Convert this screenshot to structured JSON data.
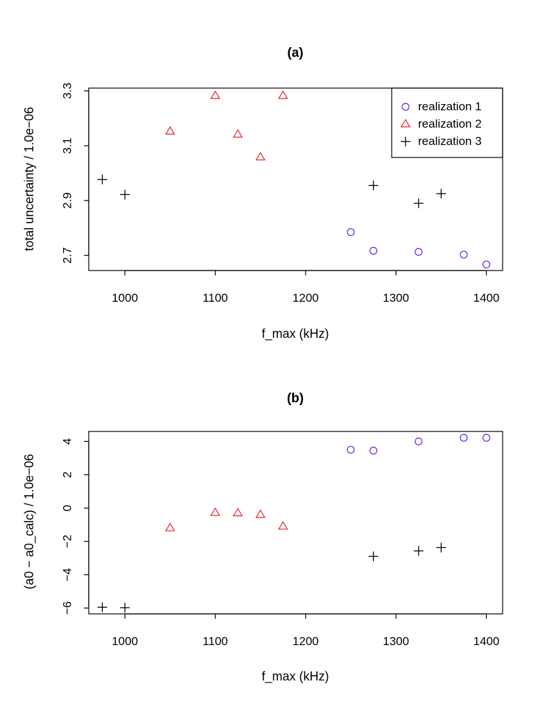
{
  "chart_data": [
    {
      "type": "scatter",
      "title": "(a)",
      "xlabel": "f_max (kHz)",
      "ylabel": "total uncertainty / 1.0e−06",
      "xlim": [
        960,
        1418
      ],
      "ylim": [
        2.645,
        3.31
      ],
      "xticks": [
        1000,
        1100,
        1200,
        1300,
        1400
      ],
      "xtick_labels": [
        "1000",
        "1100",
        "1200",
        "1300",
        "1400"
      ],
      "yticks": [
        2.7,
        2.9,
        3.1,
        3.3
      ],
      "ytick_labels": [
        "2.7",
        "2.9",
        "3.1",
        "3.3"
      ],
      "legend_position": "top-right",
      "series": [
        {
          "name": "realization 1",
          "marker": "circle",
          "color": "#6a1fe6",
          "points": [
            [
              1250,
              2.785
            ],
            [
              1275,
              2.717
            ],
            [
              1325,
              2.713
            ],
            [
              1375,
              2.703
            ],
            [
              1400,
              2.667
            ]
          ]
        },
        {
          "name": "realization 2",
          "marker": "triangle",
          "color": "#e6202a",
          "points": [
            [
              1050,
              3.152
            ],
            [
              1100,
              3.282
            ],
            [
              1125,
              3.141
            ],
            [
              1150,
              3.058
            ],
            [
              1175,
              3.282
            ]
          ]
        },
        {
          "name": "realization 3",
          "marker": "plus",
          "color": "#000000",
          "points": [
            [
              975,
              2.977
            ],
            [
              1000,
              2.922
            ],
            [
              1275,
              2.955
            ],
            [
              1325,
              2.89
            ],
            [
              1350,
              2.925
            ]
          ]
        }
      ]
    },
    {
      "type": "scatter",
      "title": "(b)",
      "xlabel": "f_max (kHz)",
      "ylabel": "(a0 − a0_calc) / 1.0e−06",
      "xlim": [
        960,
        1418
      ],
      "ylim": [
        -6.35,
        4.6
      ],
      "xticks": [
        1000,
        1100,
        1200,
        1300,
        1400
      ],
      "xtick_labels": [
        "1000",
        "1100",
        "1200",
        "1300",
        "1400"
      ],
      "yticks": [
        -6,
        -4,
        -2,
        0,
        2,
        4
      ],
      "ytick_labels": [
        "−6",
        "−4",
        "−2",
        "0",
        "2",
        "4"
      ],
      "series": [
        {
          "name": "realization 1",
          "marker": "circle",
          "color": "#6a1fe6",
          "points": [
            [
              1250,
              3.5
            ],
            [
              1275,
              3.45
            ],
            [
              1325,
              4.0
            ],
            [
              1375,
              4.22
            ],
            [
              1400,
              4.22
            ]
          ]
        },
        {
          "name": "realization 2",
          "marker": "triangle",
          "color": "#e6202a",
          "points": [
            [
              1050,
              -1.2
            ],
            [
              1100,
              -0.28
            ],
            [
              1125,
              -0.3
            ],
            [
              1150,
              -0.4
            ],
            [
              1175,
              -1.1
            ]
          ]
        },
        {
          "name": "realization 3",
          "marker": "plus",
          "color": "#000000",
          "points": [
            [
              975,
              -5.95
            ],
            [
              1000,
              -5.98
            ],
            [
              1275,
              -2.9
            ],
            [
              1325,
              -2.57
            ],
            [
              1350,
              -2.37
            ]
          ]
        }
      ]
    }
  ]
}
